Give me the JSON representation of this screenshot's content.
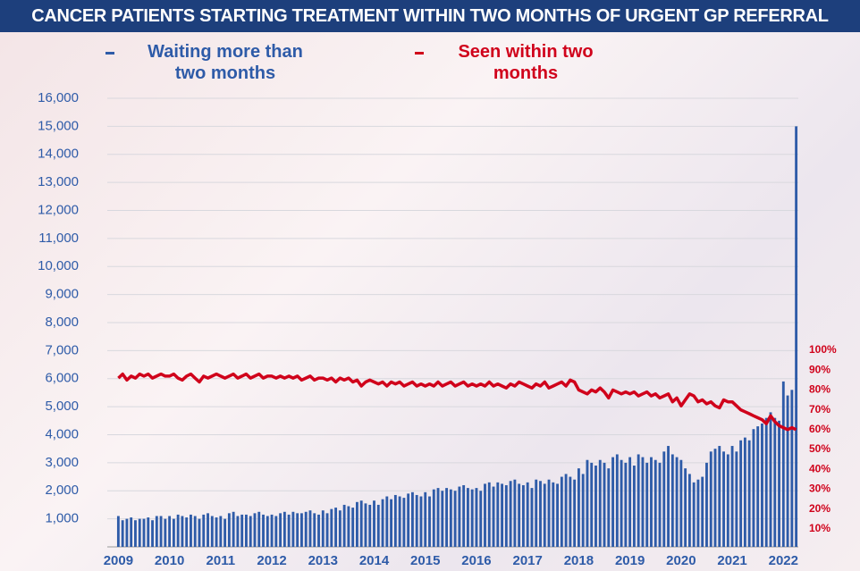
{
  "chart_data": {
    "type": "combo",
    "title": "CANCER PATIENTS STARTING TREATMENT WITHIN TWO MONTHS OF URGENT GP REFERRAL",
    "categories": [
      "2009",
      null,
      null,
      null,
      null,
      null,
      null,
      null,
      null,
      null,
      null,
      null,
      "2010",
      null,
      null,
      null,
      null,
      null,
      null,
      null,
      null,
      null,
      null,
      null,
      "2011",
      null,
      null,
      null,
      null,
      null,
      null,
      null,
      null,
      null,
      null,
      null,
      "2012",
      null,
      null,
      null,
      null,
      null,
      null,
      null,
      null,
      null,
      null,
      null,
      "2013",
      null,
      null,
      null,
      null,
      null,
      null,
      null,
      null,
      null,
      null,
      null,
      "2014",
      null,
      null,
      null,
      null,
      null,
      null,
      null,
      null,
      null,
      null,
      null,
      "2015",
      null,
      null,
      null,
      null,
      null,
      null,
      null,
      null,
      null,
      null,
      null,
      "2016",
      null,
      null,
      null,
      null,
      null,
      null,
      null,
      null,
      null,
      null,
      null,
      "2017",
      null,
      null,
      null,
      null,
      null,
      null,
      null,
      null,
      null,
      null,
      null,
      "2018",
      null,
      null,
      null,
      null,
      null,
      null,
      null,
      null,
      null,
      null,
      null,
      "2019",
      null,
      null,
      null,
      null,
      null,
      null,
      null,
      null,
      null,
      null,
      null,
      "2020",
      null,
      null,
      null,
      null,
      null,
      null,
      null,
      null,
      null,
      null,
      null,
      "2021",
      null,
      null,
      null,
      null,
      null,
      null,
      null,
      null,
      null,
      null,
      null,
      "2022",
      null,
      null,
      null
    ],
    "series": [
      {
        "name": "Waiting more than two months",
        "type": "bar",
        "color": "#2e5ba8",
        "values": [
          1100,
          950,
          1000,
          1050,
          950,
          1000,
          1000,
          1050,
          950,
          1100,
          1100,
          1000,
          1100,
          1000,
          1150,
          1100,
          1050,
          1150,
          1100,
          1000,
          1150,
          1200,
          1100,
          1050,
          1100,
          1000,
          1200,
          1250,
          1100,
          1150,
          1150,
          1100,
          1200,
          1250,
          1150,
          1100,
          1150,
          1100,
          1200,
          1250,
          1150,
          1250,
          1200,
          1200,
          1250,
          1300,
          1200,
          1150,
          1300,
          1200,
          1350,
          1400,
          1300,
          1500,
          1450,
          1400,
          1600,
          1650,
          1550,
          1500,
          1650,
          1500,
          1700,
          1800,
          1700,
          1850,
          1800,
          1750,
          1900,
          1950,
          1850,
          1800,
          1950,
          1800,
          2050,
          2100,
          2000,
          2100,
          2050,
          2000,
          2150,
          2200,
          2100,
          2050,
          2100,
          2000,
          2250,
          2300,
          2150,
          2300,
          2250,
          2200,
          2350,
          2400,
          2250,
          2200,
          2300,
          2100,
          2400,
          2350,
          2250,
          2400,
          2300,
          2250,
          2500,
          2600,
          2500,
          2400,
          2800,
          2600,
          3100,
          3000,
          2900,
          3100,
          3000,
          2800,
          3200,
          3300,
          3100,
          3000,
          3200,
          2900,
          3300,
          3200,
          3000,
          3200,
          3100,
          3000,
          3400,
          3600,
          3300,
          3200,
          3100,
          2800,
          2600,
          2300,
          2400,
          2500,
          3000,
          3400,
          3500,
          3600,
          3400,
          3300,
          3600,
          3400,
          3800,
          3900,
          3800,
          4200,
          4300,
          4400,
          4600,
          4800,
          4600,
          4500,
          5900,
          5400,
          5600,
          15000
        ]
      },
      {
        "name": "Seen within two months",
        "type": "line",
        "axis": "y2",
        "color": "#d0021b",
        "values": [
          86,
          88,
          85,
          87,
          86,
          88,
          87,
          88,
          86,
          87,
          88,
          87,
          87,
          88,
          86,
          85,
          87,
          88,
          86,
          84,
          87,
          86,
          87,
          88,
          87,
          86,
          87,
          88,
          86,
          87,
          88,
          86,
          87,
          88,
          86,
          87,
          87,
          86,
          87,
          86,
          87,
          86,
          87,
          85,
          86,
          87,
          85,
          86,
          86,
          85,
          86,
          84,
          86,
          85,
          86,
          84,
          85,
          82,
          84,
          85,
          84,
          83,
          84,
          82,
          84,
          83,
          84,
          82,
          83,
          84,
          82,
          83,
          82,
          83,
          82,
          84,
          82,
          83,
          84,
          82,
          83,
          84,
          82,
          83,
          82,
          83,
          82,
          84,
          82,
          83,
          82,
          81,
          83,
          82,
          84,
          83,
          82,
          81,
          83,
          82,
          84,
          81,
          82,
          83,
          84,
          82,
          85,
          84,
          80,
          79,
          78,
          80,
          79,
          81,
          79,
          76,
          80,
          79,
          78,
          79,
          78,
          79,
          77,
          78,
          79,
          77,
          78,
          76,
          77,
          78,
          74,
          76,
          72,
          75,
          78,
          77,
          74,
          75,
          73,
          74,
          72,
          71,
          75,
          74,
          74,
          72,
          70,
          69,
          68,
          67,
          66,
          65,
          63,
          67,
          64,
          62,
          61,
          60,
          61,
          60
        ]
      }
    ],
    "ylim": [
      0,
      16000
    ],
    "yticks": [
      {
        "value": 1000,
        "label": "1,000"
      },
      {
        "value": 2000,
        "label": "2,000"
      },
      {
        "value": 3000,
        "label": "3,000"
      },
      {
        "value": 4000,
        "label": "4,000"
      },
      {
        "value": 5000,
        "label": "5,000"
      },
      {
        "value": 6000,
        "label": "6,000"
      },
      {
        "value": 7000,
        "label": "7,000"
      },
      {
        "value": 8000,
        "label": "8,000"
      },
      {
        "value": 9000,
        "label": "9,000"
      },
      {
        "value": 10000,
        "label": "10,000"
      },
      {
        "value": 11000,
        "label": "11,000"
      },
      {
        "value": 12000,
        "label": "12,000"
      },
      {
        "value": 13000,
        "label": "13,000"
      },
      {
        "value": 14000,
        "label": "14,000"
      },
      {
        "value": 15000,
        "label": "15,000"
      },
      {
        "value": 16000,
        "label": "16,000"
      }
    ],
    "y2lim": [
      0,
      100
    ],
    "y2ticks": [
      {
        "value": 10,
        "label": "10%"
      },
      {
        "value": 20,
        "label": "20%"
      },
      {
        "value": 30,
        "label": "30%"
      },
      {
        "value": 40,
        "label": "40%"
      },
      {
        "value": 50,
        "label": "50%"
      },
      {
        "value": 60,
        "label": "60%"
      },
      {
        "value": 70,
        "label": "70%"
      },
      {
        "value": 80,
        "label": "80%"
      },
      {
        "value": 90,
        "label": "90%"
      },
      {
        "value": 100,
        "label": "100%"
      }
    ],
    "grid": true
  }
}
